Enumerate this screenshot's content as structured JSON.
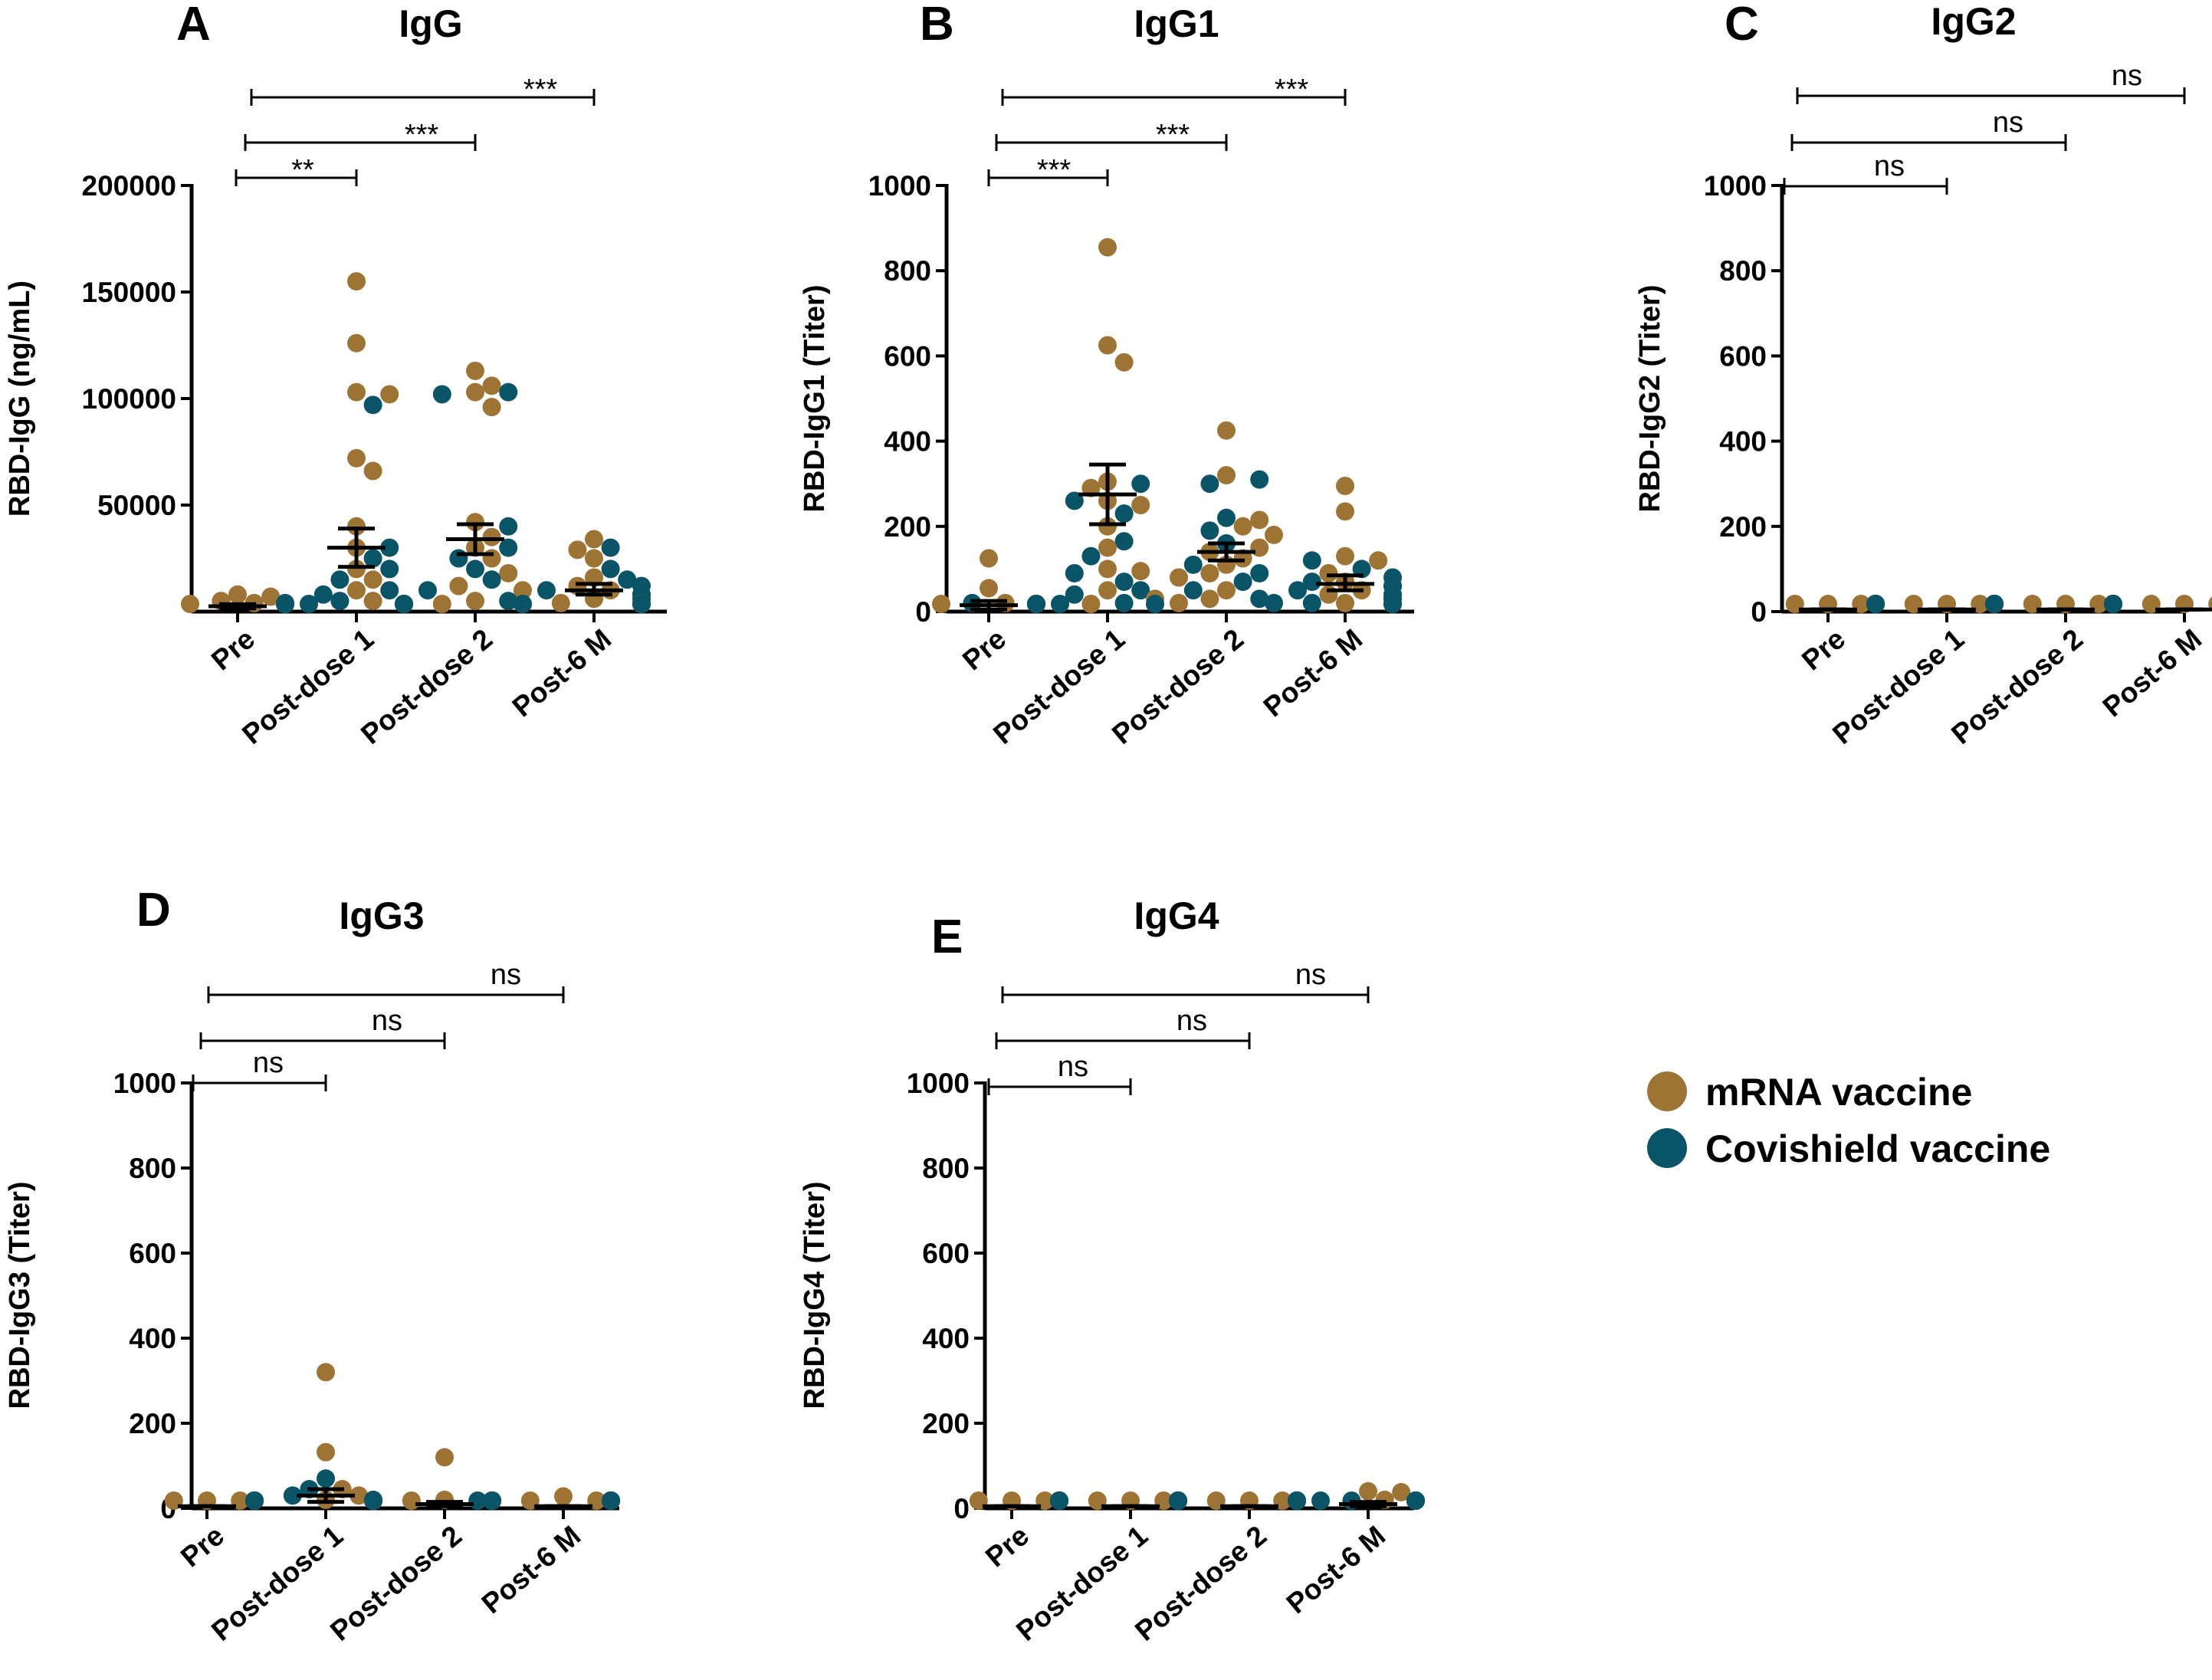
{
  "figure_id": "Figure",
  "colors": {
    "mrna": "#9E7434",
    "covishield": "#0A5468",
    "axis": "#000000"
  },
  "legend": {
    "items": [
      {
        "label": "mRNA vaccine",
        "color": "#9E7434"
      },
      {
        "label": "Covishield vaccine",
        "color": "#0A5468"
      }
    ]
  },
  "chart_data": [
    {
      "type": "scatter",
      "panel": "A",
      "title": "IgG",
      "ylabel": "RBD-IgG (ng/mL)",
      "ylim": [
        0,
        200000
      ],
      "yticks": [
        {
          "value": 50000,
          "label": "50000"
        },
        {
          "value": 100000,
          "label": "100000"
        },
        {
          "value": 150000,
          "label": "150000"
        },
        {
          "value": 200000,
          "label": "200000"
        }
      ],
      "categories": [
        "Pre",
        "Post-dose 1",
        "Post-dose 2",
        "Post-6 M"
      ],
      "groups": [
        {
          "mrna": [
            1000,
            2000,
            3000,
            5000,
            7000,
            8000,
            500,
            4000
          ],
          "covishield": [
            500,
            1000,
            1500,
            2000,
            3000,
            4000
          ],
          "mean": 2500,
          "sem_low": 1500,
          "sem_high": 3500
        },
        {
          "mrna": [
            155000,
            126000,
            103000,
            102000,
            72000,
            66000,
            40000,
            30000,
            20000,
            15000,
            10000,
            5000,
            3000,
            2000
          ],
          "covishield": [
            97000,
            30000,
            25000,
            20000,
            15000,
            10000,
            8000,
            5000,
            3000,
            2000,
            1000,
            500
          ],
          "mean": 30000,
          "sem_low": 21000,
          "sem_high": 39000
        },
        {
          "mrna": [
            113000,
            106000,
            103000,
            96000,
            42000,
            35000,
            30000,
            25000,
            18000,
            12000,
            10000,
            5000,
            3000,
            1000
          ],
          "covishield": [
            103000,
            102000,
            40000,
            30000,
            25000,
            20000,
            15000,
            10000,
            5000,
            2000,
            1000
          ],
          "mean": 34000,
          "sem_low": 27000,
          "sem_high": 41000
        },
        {
          "mrna": [
            34000,
            29000,
            25000,
            16000,
            12000,
            10000,
            8000,
            6000,
            4000,
            2000,
            1000,
            500,
            3000
          ],
          "covishield": [
            30000,
            20000,
            15000,
            12000,
            10000,
            8000,
            6000,
            4000,
            2000,
            1000,
            500
          ],
          "mean": 10000,
          "sem_low": 8000,
          "sem_high": 13000
        }
      ],
      "comparisons": [
        {
          "from": "Pre",
          "to": "Post-dose 1",
          "label": "**"
        },
        {
          "from": "Pre",
          "to": "Post-dose 2",
          "label": "***"
        },
        {
          "from": "Pre",
          "to": "Post-6 M",
          "label": "***"
        }
      ]
    },
    {
      "type": "scatter",
      "panel": "B",
      "title": "IgG1",
      "ylabel": "RBD-IgG1 (Titer)",
      "ylim": [
        0,
        1000
      ],
      "yticks": [
        {
          "value": 0,
          "label": "0"
        },
        {
          "value": 200,
          "label": "200"
        },
        {
          "value": 400,
          "label": "400"
        },
        {
          "value": 600,
          "label": "600"
        },
        {
          "value": 800,
          "label": "800"
        },
        {
          "value": 1000,
          "label": "1000"
        }
      ],
      "categories": [
        "Pre",
        "Post-dose 1",
        "Post-dose 2",
        "Post-6 M"
      ],
      "groups": [
        {
          "mrna": [
            125,
            55,
            20,
            15,
            10,
            5,
            5,
            2
          ],
          "covishield": [
            20,
            10,
            5,
            5,
            2,
            1
          ],
          "mean": 15,
          "sem_low": 5,
          "sem_high": 25
        },
        {
          "mrna": [
            855,
            625,
            585,
            305,
            290,
            260,
            250,
            200,
            150,
            100,
            95,
            50,
            30,
            10
          ],
          "covishield": [
            300,
            260,
            230,
            165,
            130,
            90,
            70,
            50,
            40,
            20,
            10,
            5
          ],
          "mean": 275,
          "sem_low": 205,
          "sem_high": 345
        },
        {
          "mrna": [
            425,
            320,
            215,
            200,
            180,
            150,
            140,
            125,
            110,
            90,
            80,
            50,
            30,
            20
          ],
          "covishield": [
            310,
            300,
            220,
            190,
            160,
            110,
            90,
            70,
            50,
            30,
            20
          ],
          "mean": 140,
          "sem_low": 120,
          "sem_high": 160
        },
        {
          "mrna": [
            295,
            235,
            130,
            120,
            90,
            70,
            60,
            50,
            40,
            30,
            20,
            10
          ],
          "covishield": [
            120,
            100,
            80,
            70,
            60,
            50,
            40,
            30,
            20,
            10,
            5
          ],
          "mean": 65,
          "sem_low": 50,
          "sem_high": 85
        }
      ],
      "comparisons": [
        {
          "from": "Pre",
          "to": "Post-dose 1",
          "label": "***"
        },
        {
          "from": "Pre",
          "to": "Post-dose 2",
          "label": "***"
        },
        {
          "from": "Pre",
          "to": "Post-6 M",
          "label": "***"
        }
      ]
    },
    {
      "type": "scatter",
      "panel": "C",
      "title": "IgG2",
      "ylabel": "RBD-IgG2 (Titer)",
      "ylim": [
        0,
        1000
      ],
      "yticks": [
        {
          "value": 0,
          "label": "0"
        },
        {
          "value": 200,
          "label": "200"
        },
        {
          "value": 400,
          "label": "400"
        },
        {
          "value": 600,
          "label": "600"
        },
        {
          "value": 800,
          "label": "800"
        },
        {
          "value": 1000,
          "label": "1000"
        }
      ],
      "categories": [
        "Pre",
        "Post-dose 1",
        "Post-dose 2",
        "Post-6 M"
      ],
      "groups": [
        {
          "mrna": [
            5,
            5,
            5,
            5,
            5,
            5,
            5,
            5
          ],
          "covishield": [
            5,
            5,
            5,
            5,
            5,
            5
          ],
          "mean": 5,
          "sem_low": 5,
          "sem_high": 5
        },
        {
          "mrna": [
            8,
            5,
            5,
            5,
            5,
            5,
            5,
            5
          ],
          "covishield": [
            5,
            5,
            5,
            5,
            5,
            5
          ],
          "mean": 5,
          "sem_low": 5,
          "sem_high": 5
        },
        {
          "mrna": [
            5,
            5,
            5,
            5,
            5,
            5,
            5,
            5
          ],
          "covishield": [
            5,
            5,
            5,
            5,
            5,
            5
          ],
          "mean": 5,
          "sem_low": 5,
          "sem_high": 5
        },
        {
          "mrna": [
            12,
            5,
            5,
            5,
            5,
            5,
            5,
            5
          ],
          "covishield": [
            5,
            5,
            5,
            5,
            5,
            5
          ],
          "mean": 5,
          "sem_low": 5,
          "sem_high": 5
        }
      ],
      "comparisons": [
        {
          "from": "Pre",
          "to": "Post-dose 1",
          "label": "ns"
        },
        {
          "from": "Pre",
          "to": "Post-dose 2",
          "label": "ns"
        },
        {
          "from": "Pre",
          "to": "Post-6 M",
          "label": "ns"
        }
      ]
    },
    {
      "type": "scatter",
      "panel": "D",
      "title": "IgG3",
      "ylabel": "RBD-IgG3 (Titer)",
      "ylim": [
        0,
        1000
      ],
      "yticks": [
        {
          "value": 0,
          "label": "0"
        },
        {
          "value": 200,
          "label": "200"
        },
        {
          "value": 400,
          "label": "400"
        },
        {
          "value": 600,
          "label": "600"
        },
        {
          "value": 800,
          "label": "800"
        },
        {
          "value": 1000,
          "label": "1000"
        }
      ],
      "categories": [
        "Pre",
        "Post-dose 1",
        "Post-dose 2",
        "Post-6 M"
      ],
      "groups": [
        {
          "mrna": [
            5,
            5,
            5,
            5,
            5,
            5,
            5,
            5
          ],
          "covishield": [
            5,
            5,
            5,
            5,
            5,
            5
          ],
          "mean": 5,
          "sem_low": 5,
          "sem_high": 5
        },
        {
          "mrna": [
            320,
            132,
            45,
            30,
            20,
            10,
            5,
            5,
            5,
            5
          ],
          "covishield": [
            70,
            45,
            30,
            20,
            10,
            5,
            5,
            5,
            5
          ],
          "mean": 30,
          "sem_low": 15,
          "sem_high": 45
        },
        {
          "mrna": [
            120,
            20,
            10,
            5,
            5,
            5,
            5,
            5
          ],
          "covishield": [
            15,
            10,
            5,
            5,
            5,
            5,
            5
          ],
          "mean": 10,
          "sem_low": 5,
          "sem_high": 15
        },
        {
          "mrna": [
            28,
            5,
            5,
            5,
            5,
            5,
            5,
            5
          ],
          "covishield": [
            5,
            5,
            5,
            5,
            5,
            5
          ],
          "mean": 5,
          "sem_low": 5,
          "sem_high": 5
        }
      ],
      "comparisons": [
        {
          "from": "Pre",
          "to": "Post-dose 1",
          "label": "ns"
        },
        {
          "from": "Pre",
          "to": "Post-dose 2",
          "label": "ns"
        },
        {
          "from": "Pre",
          "to": "Post-6 M",
          "label": "ns"
        }
      ]
    },
    {
      "type": "scatter",
      "panel": "E",
      "title": "IgG4",
      "ylabel": "RBD-IgG4 (Titer)",
      "ylim": [
        0,
        1000
      ],
      "yticks": [
        {
          "value": 0,
          "label": "0"
        },
        {
          "value": 200,
          "label": "200"
        },
        {
          "value": 400,
          "label": "400"
        },
        {
          "value": 600,
          "label": "600"
        },
        {
          "value": 800,
          "label": "800"
        },
        {
          "value": 1000,
          "label": "1000"
        }
      ],
      "categories": [
        "Pre",
        "Post-dose 1",
        "Post-dose 2",
        "Post-6 M"
      ],
      "groups": [
        {
          "mrna": [
            5,
            5,
            5,
            5,
            5,
            5,
            5,
            5
          ],
          "covishield": [
            5,
            5,
            5,
            5,
            5,
            5
          ],
          "mean": 5,
          "sem_low": 5,
          "sem_high": 5
        },
        {
          "mrna": [
            5,
            5,
            5,
            5,
            5,
            5,
            5,
            5
          ],
          "covishield": [
            5,
            5,
            5,
            5,
            5,
            5
          ],
          "mean": 5,
          "sem_low": 5,
          "sem_high": 5
        },
        {
          "mrna": [
            5,
            5,
            5,
            5,
            5,
            5,
            5,
            5
          ],
          "covishield": [
            5,
            5,
            5,
            5,
            5,
            5
          ],
          "mean": 5,
          "sem_low": 5,
          "sem_high": 5
        },
        {
          "mrna": [
            40,
            38,
            20,
            10,
            5,
            5,
            5,
            5
          ],
          "covishield": [
            15,
            10,
            5,
            5,
            5,
            5
          ],
          "mean": 10,
          "sem_low": 5,
          "sem_high": 15
        }
      ],
      "comparisons": [
        {
          "from": "Pre",
          "to": "Post-dose 1",
          "label": "ns"
        },
        {
          "from": "Pre",
          "to": "Post-dose 2",
          "label": "ns"
        },
        {
          "from": "Pre",
          "to": "Post-6 M",
          "label": "ns"
        }
      ]
    }
  ]
}
